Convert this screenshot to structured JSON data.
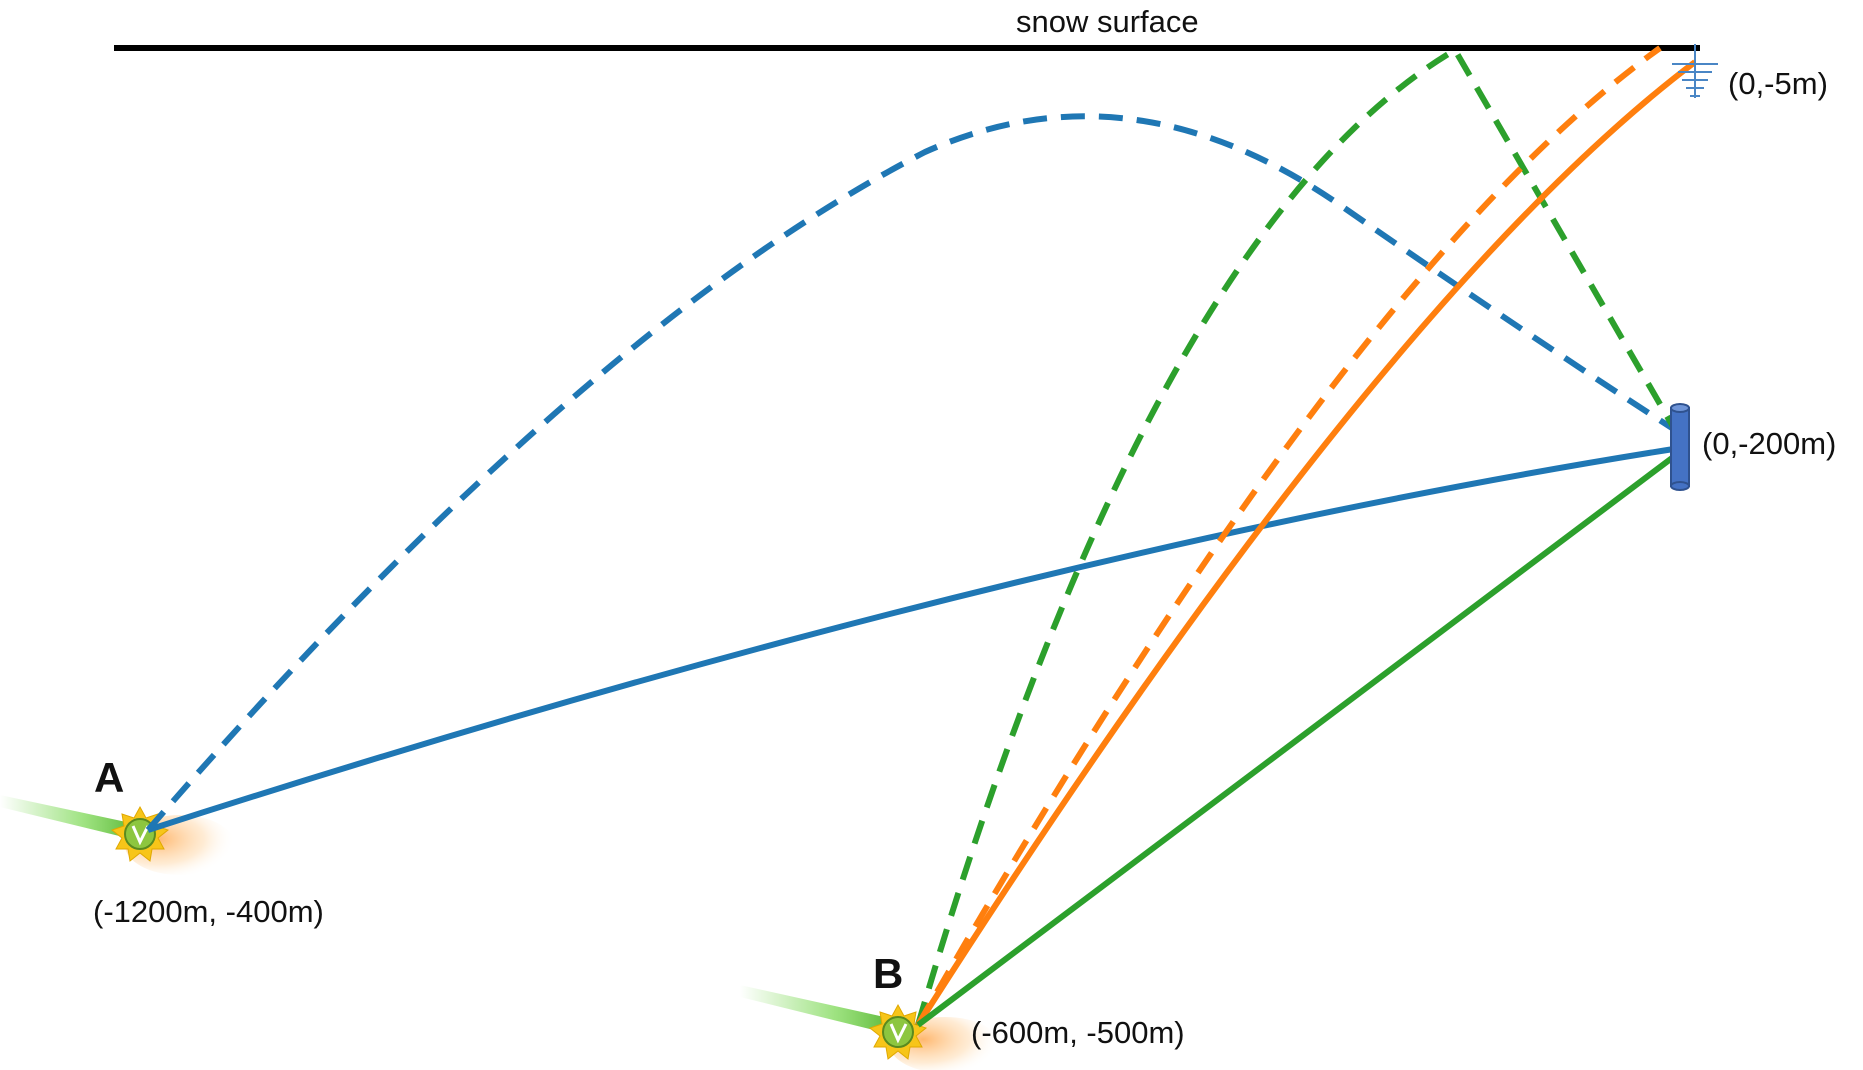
{
  "surface_label": "snow surface",
  "receivers": [
    {
      "label": "(0,-5m)",
      "kind": "surface-antenna"
    },
    {
      "label": "(0,-200m)",
      "kind": "deep-antenna"
    }
  ],
  "sources": [
    {
      "name": "A",
      "coords": "(-1200m, -400m)"
    },
    {
      "name": "B",
      "coords": "(-600m, -500m)"
    }
  ],
  "colors": {
    "surface": "#000000",
    "ray_blue": "#1f77b4",
    "ray_orange": "#ff7f0e",
    "ray_green": "#2ca02c",
    "antenna": "#4472c4",
    "neutrino_badge": "#8dc63f",
    "star_burst": "#f7c519",
    "cherenkov_cone": "#7ed957",
    "shower_glow": "#ffb060"
  },
  "rays": [
    {
      "from": "A",
      "to": "(0,-200m)",
      "color": "blue",
      "style": "solid",
      "type": "direct"
    },
    {
      "from": "A",
      "to": "(0,-200m)",
      "color": "blue",
      "style": "dashed",
      "type": "refracted"
    },
    {
      "from": "B",
      "to": "(0,-200m)",
      "color": "green",
      "style": "solid",
      "type": "direct"
    },
    {
      "from": "B",
      "to": "(0,-200m)",
      "color": "green",
      "style": "dashed",
      "type": "reflected"
    },
    {
      "from": "B",
      "to": "(0,-5m)",
      "color": "orange",
      "style": "solid",
      "type": "direct"
    },
    {
      "from": "B",
      "to": "(0,-5m)",
      "color": "orange",
      "style": "dashed",
      "type": "refracted"
    }
  ]
}
